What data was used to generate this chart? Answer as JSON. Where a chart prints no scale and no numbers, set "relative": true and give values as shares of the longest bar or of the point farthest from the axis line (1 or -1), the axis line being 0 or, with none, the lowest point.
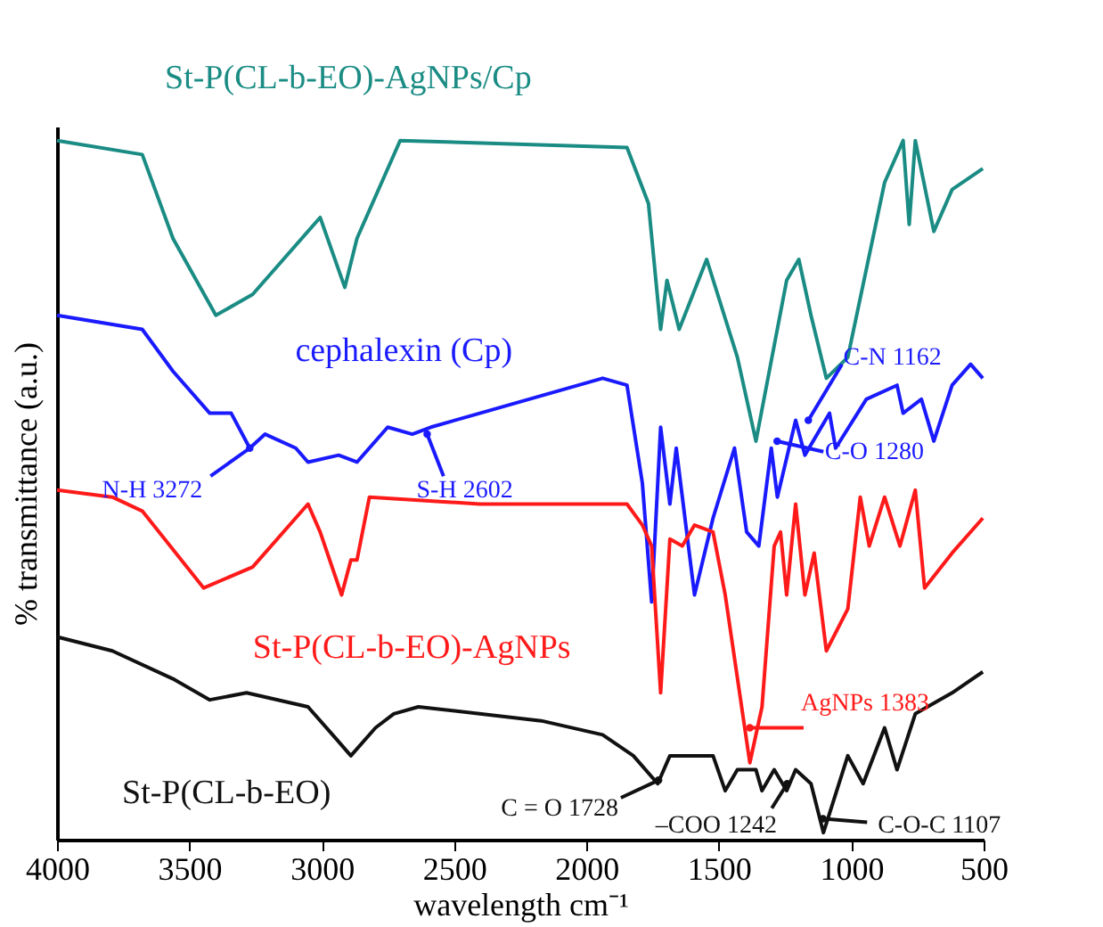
{
  "chart_data": {
    "type": "line",
    "relative": true,
    "xlabel": "wavelength cm⁻¹",
    "ylabel": "% transmittance (a.u.)",
    "xlim": [
      4000,
      500
    ],
    "xticks": [
      4000,
      3500,
      3000,
      2500,
      2000,
      1500,
      1000,
      500
    ],
    "grid": false,
    "line_style": "solid",
    "marker": "none",
    "series": [
      {
        "name": "St-P(CL-b-EO)-AgNPs/Cp",
        "color": "#1a8c84",
        "x": [
          4000,
          3678,
          3562,
          3400,
          3261,
          3006,
          2913,
          2867,
          2704,
          1847,
          1766,
          1720,
          1696,
          1650,
          1546,
          1430,
          1360,
          1244,
          1198,
          1152,
          1094,
          1013,
          874,
          804,
          781,
          758,
          688,
          619,
          503
        ],
        "values": [
          1.0,
          0.98,
          0.86,
          0.75,
          0.78,
          0.89,
          0.79,
          0.86,
          1.0,
          0.99,
          0.91,
          0.73,
          0.8,
          0.73,
          0.83,
          0.69,
          0.57,
          0.8,
          0.83,
          0.75,
          0.66,
          0.69,
          0.94,
          1.0,
          0.88,
          1.0,
          0.87,
          0.93,
          0.96
        ]
      },
      {
        "name": "cephalexin (Cp)",
        "color": "#1a1aff",
        "x": [
          4000,
          3678,
          3562,
          3423,
          3342,
          3272,
          3214,
          3098,
          3052,
          2936,
          2867,
          2751,
          2658,
          2588,
          2403,
          1939,
          1847,
          1789,
          1754,
          1720,
          1685,
          1661,
          1592,
          1522,
          1441,
          1395,
          1349,
          1302,
          1279,
          1210,
          1175,
          1082,
          1059,
          943,
          827,
          804,
          735,
          688,
          619,
          549,
          503
        ],
        "values": [
          0.75,
          0.73,
          0.67,
          0.61,
          0.61,
          0.56,
          0.58,
          0.56,
          0.54,
          0.55,
          0.54,
          0.59,
          0.58,
          0.59,
          0.61,
          0.66,
          0.65,
          0.51,
          0.34,
          0.59,
          0.48,
          0.56,
          0.35,
          0.46,
          0.56,
          0.44,
          0.42,
          0.56,
          0.49,
          0.6,
          0.55,
          0.61,
          0.56,
          0.63,
          0.65,
          0.61,
          0.63,
          0.57,
          0.65,
          0.68,
          0.66
        ]
      },
      {
        "name": "St-P(CL-b-EO)-AgNPs",
        "color": "#ff1a1a",
        "x": [
          4000,
          3791,
          3678,
          3446,
          3261,
          3052,
          3006,
          2925,
          2890,
          2867,
          2820,
          2403,
          1847,
          1789,
          1754,
          1720,
          1685,
          1638,
          1592,
          1522,
          1476,
          1383,
          1337,
          1291,
          1267,
          1244,
          1210,
          1175,
          1140,
          1094,
          1013,
          966,
          932,
          874,
          816,
          758,
          723,
          619,
          503
        ],
        "values": [
          0.5,
          0.49,
          0.47,
          0.36,
          0.39,
          0.48,
          0.44,
          0.35,
          0.4,
          0.4,
          0.49,
          0.48,
          0.48,
          0.45,
          0.42,
          0.21,
          0.43,
          0.42,
          0.45,
          0.44,
          0.35,
          0.11,
          0.19,
          0.42,
          0.44,
          0.35,
          0.48,
          0.35,
          0.41,
          0.27,
          0.33,
          0.49,
          0.42,
          0.49,
          0.42,
          0.5,
          0.36,
          0.41,
          0.46
        ]
      },
      {
        "name": "St-P(CL-b-EO)",
        "color": "#111111",
        "x": [
          4000,
          3791,
          3562,
          3423,
          3284,
          3052,
          2959,
          2890,
          2797,
          2728,
          2635,
          2171,
          1939,
          1823,
          1731,
          1685,
          1592,
          1522,
          1476,
          1430,
          1360,
          1337,
          1291,
          1244,
          1210,
          1152,
          1105,
          1013,
          955,
          874,
          827,
          758,
          619,
          503
        ],
        "values": [
          0.29,
          0.27,
          0.23,
          0.2,
          0.21,
          0.19,
          0.15,
          0.12,
          0.16,
          0.18,
          0.19,
          0.17,
          0.15,
          0.12,
          0.08,
          0.12,
          0.12,
          0.12,
          0.07,
          0.1,
          0.1,
          0.07,
          0.1,
          0.07,
          0.1,
          0.08,
          0.01,
          0.12,
          0.08,
          0.16,
          0.1,
          0.18,
          0.21,
          0.24
        ]
      }
    ],
    "annotations": [
      {
        "text": "N-H 3272",
        "x": 3272,
        "y": 0.56
      },
      {
        "text": "S-H 2602",
        "x": 2602,
        "y": 0.58
      },
      {
        "text": "C-N 1162",
        "x": 1162,
        "y": 0.6
      },
      {
        "text": "C-O 1280",
        "x": 1280,
        "y": 0.57
      },
      {
        "text": "AgNPs 1383",
        "x": 1383,
        "y": 0.16
      },
      {
        "text": "C = O 1728",
        "x": 1728,
        "y": 0.085
      },
      {
        "text": "–COO 1242",
        "x": 1242,
        "y": 0.08
      },
      {
        "text": "C-O-C 1107",
        "x": 1107,
        "y": 0.03
      }
    ]
  }
}
